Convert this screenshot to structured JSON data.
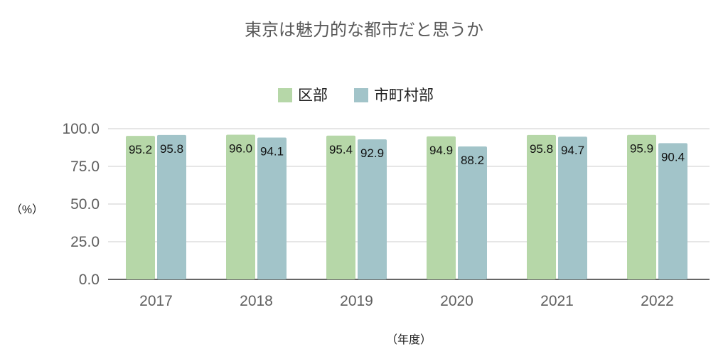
{
  "chart_data": {
    "type": "bar",
    "title": "東京は魅力的な都市だと思うか",
    "xlabel": "（年度）",
    "ylabel": "（%）",
    "categories": [
      "2017",
      "2018",
      "2019",
      "2020",
      "2021",
      "2022"
    ],
    "series": [
      {
        "name": "区部",
        "color": "#b6d7a8",
        "values": [
          95.2,
          96.0,
          95.4,
          94.9,
          95.8,
          95.9
        ]
      },
      {
        "name": "市町村部",
        "color": "#a2c4c9",
        "values": [
          95.8,
          94.1,
          92.9,
          88.2,
          94.7,
          90.4
        ]
      }
    ],
    "ylim": [
      0,
      100
    ],
    "yticks": [
      "0.0",
      "25.0",
      "50.0",
      "75.0",
      "100.0"
    ],
    "grid": true,
    "legend": "top",
    "data_labels": true
  }
}
